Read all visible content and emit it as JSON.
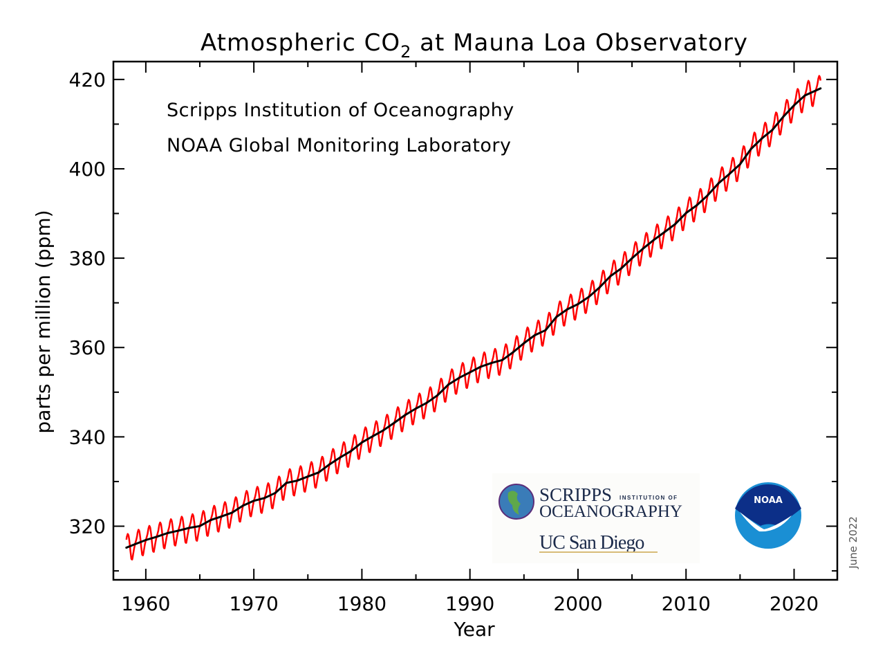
{
  "chart_data": {
    "type": "line",
    "title": "Atmospheric CO",
    "title_subscript": "2",
    "title_suffix": " at Mauna Loa Observatory",
    "xlabel": "Year",
    "ylabel": "parts per million (ppm)",
    "xlim": [
      1957,
      2024
    ],
    "ylim": [
      308,
      424
    ],
    "x_ticks": [
      "1960",
      "1970",
      "1980",
      "1990",
      "2000",
      "2010",
      "2020"
    ],
    "y_ticks": [
      "320",
      "340",
      "360",
      "380",
      "400",
      "420"
    ],
    "grid": false,
    "annotations": [
      "Scripps Institution of Oceanography",
      "NOAA Global Monitoring Laboratory"
    ],
    "date_note": "June 2022",
    "series": [
      {
        "kind": "monthly mean (with seasonal cycle)",
        "color": "#ff0000",
        "x_start": 1958.2,
        "x_end": 2022.45,
        "seasonal_cycle_ppm_by_month": [
          0.0,
          0.6,
          1.3,
          2.5,
          3.0,
          2.4,
          0.8,
          -1.3,
          -3.1,
          -3.2,
          -2.0,
          -0.9
        ]
      },
      {
        "kind": "seasonally adjusted trend",
        "color": "#000000",
        "years": [
          1958.2,
          1959,
          1960,
          1961,
          1962,
          1963,
          1964,
          1965,
          1966,
          1967,
          1968,
          1969,
          1970,
          1971,
          1972,
          1973,
          1974,
          1975,
          1976,
          1977,
          1978,
          1979,
          1980,
          1981,
          1982,
          1983,
          1984,
          1985,
          1986,
          1987,
          1988,
          1989,
          1990,
          1991,
          1992,
          1993,
          1994,
          1995,
          1996,
          1997,
          1998,
          1999,
          2000,
          2001,
          2002,
          2003,
          2004,
          2005,
          2006,
          2007,
          2008,
          2009,
          2010,
          2011,
          2012,
          2013,
          2014,
          2015,
          2016,
          2017,
          2018,
          2019,
          2020,
          2021,
          2022.45
        ],
        "values": [
          315.2,
          315.98,
          316.91,
          317.64,
          318.45,
          318.99,
          319.62,
          320.04,
          321.37,
          322.18,
          323.05,
          324.62,
          325.68,
          326.32,
          327.46,
          329.68,
          330.19,
          331.13,
          332.03,
          333.84,
          335.41,
          336.84,
          338.76,
          340.12,
          341.48,
          343.15,
          344.87,
          346.35,
          347.61,
          349.31,
          351.69,
          353.2,
          354.45,
          355.7,
          356.54,
          357.21,
          358.96,
          360.97,
          362.74,
          363.88,
          366.84,
          368.54,
          369.71,
          371.32,
          373.45,
          375.98,
          377.7,
          379.98,
          382.09,
          384.02,
          385.83,
          387.64,
          390.1,
          391.85,
          394.06,
          396.74,
          398.81,
          401.01,
          404.41,
          406.76,
          408.72,
          411.65,
          414.21,
          416.41,
          418.0
        ]
      }
    ]
  },
  "logos": {
    "scripps_main": "SCRIPPS",
    "scripps_small": "INSTITUTION OF",
    "scripps_second": "OCEANOGRAPHY",
    "ucsd": "UC San Diego",
    "noaa": "NOAA"
  }
}
